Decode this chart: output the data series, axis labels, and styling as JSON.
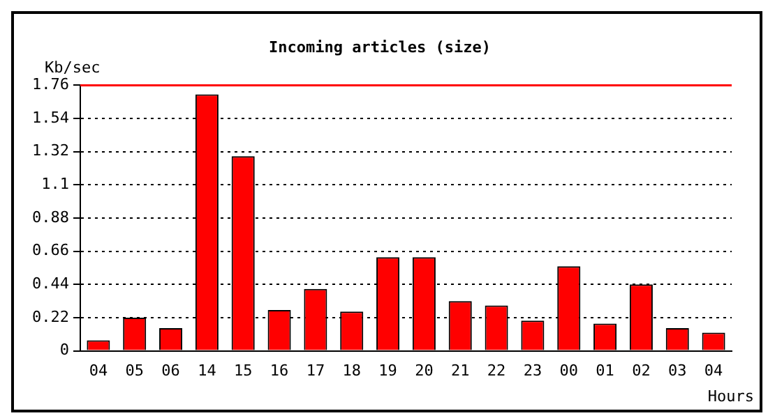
{
  "chart_data": {
    "type": "bar",
    "title": "Incoming articles (size)",
    "ylabel": "Kb/sec",
    "xlabel": "Hours",
    "categories": [
      "04",
      "05",
      "06",
      "14",
      "15",
      "16",
      "17",
      "18",
      "19",
      "20",
      "21",
      "22",
      "23",
      "00",
      "01",
      "02",
      "03",
      "04"
    ],
    "values": [
      0.07,
      0.22,
      0.15,
      1.7,
      1.29,
      0.27,
      0.41,
      0.26,
      0.62,
      0.62,
      0.33,
      0.3,
      0.2,
      0.56,
      0.18,
      0.44,
      0.15,
      0.12
    ],
    "color": "#ff0000",
    "ylim": [
      0,
      1.76
    ],
    "yticks": [
      0,
      0.22,
      0.44,
      0.66,
      0.88,
      1.1,
      1.32,
      1.54,
      1.76
    ],
    "grid": "y",
    "ref_lines": [
      {
        "axis": "y",
        "value": 1.76,
        "color": "#ff0000"
      }
    ]
  }
}
